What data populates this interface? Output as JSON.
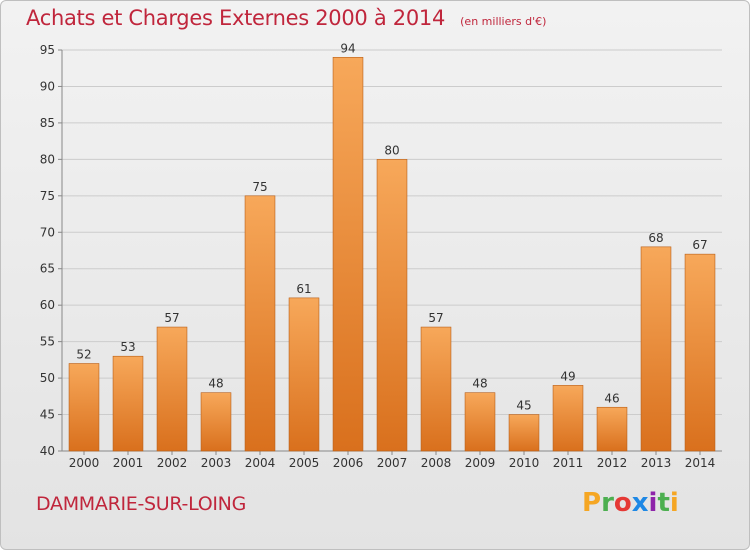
{
  "header": {
    "title": "Achats et Charges Externes 2000 à 2014",
    "unit": "(en milliers d'€)"
  },
  "footer": {
    "commune": "DAMMARIE-SUR-LOING",
    "brand": "Proxiti",
    "brand_colors": [
      "#f5a623",
      "#4caf50",
      "#e53935",
      "#1e88e5",
      "#8e24aa",
      "#4caf50",
      "#f5a623"
    ]
  },
  "colors": {
    "title": "#c0263c",
    "bar_top": "#f7a85a",
    "bar_bottom": "#d9701d",
    "bar_edge": "#b85e17",
    "grid": "#cccccc"
  },
  "chart_data": {
    "type": "bar",
    "title": "Achats et Charges Externes 2000 à 2014",
    "subtitle": "(en milliers d'€)",
    "xlabel": "",
    "ylabel": "",
    "categories": [
      "2000",
      "2001",
      "2002",
      "2003",
      "2004",
      "2005",
      "2006",
      "2007",
      "2008",
      "2009",
      "2010",
      "2011",
      "2012",
      "2013",
      "2014"
    ],
    "values": [
      52,
      53,
      57,
      48,
      75,
      61,
      94,
      80,
      57,
      48,
      45,
      49,
      46,
      68,
      67
    ],
    "ylim": [
      40,
      95
    ],
    "yticks": [
      40,
      45,
      50,
      55,
      60,
      65,
      70,
      75,
      80,
      85,
      90,
      95
    ],
    "grid": true,
    "legend": "none"
  }
}
